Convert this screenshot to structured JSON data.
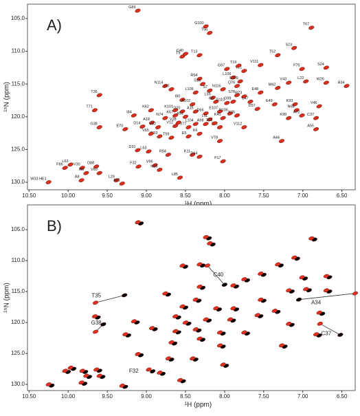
{
  "chart_data": [
    {
      "type": "scatter",
      "panel_label": "A)",
      "xlabel": "¹H (ppm)",
      "ylabel": "¹⁵N (ppm)",
      "xlim": [
        10.52,
        6.33
      ],
      "ylim": [
        102.8,
        131.15
      ],
      "xticks": [
        {
          "value": 10.5,
          "label": "10.50"
        },
        {
          "value": 10,
          "label": "10.00"
        },
        {
          "value": 9.5,
          "label": "9.50"
        },
        {
          "value": 9,
          "label": "9.00"
        },
        {
          "value": 8.5,
          "label": "8.50"
        },
        {
          "value": 8,
          "label": "8.00"
        },
        {
          "value": 7.5,
          "label": "7.50"
        },
        {
          "value": 7,
          "label": "7.00"
        },
        {
          "value": 6.5,
          "label": "6.50"
        }
      ],
      "yticks": [
        {
          "value": 105,
          "label": "105.0"
        },
        {
          "value": 110,
          "label": "110.0"
        },
        {
          "value": 115,
          "label": "115.0"
        },
        {
          "value": 120,
          "label": "120.0"
        },
        {
          "value": 125,
          "label": "125.0"
        },
        {
          "value": 130,
          "label": "130.0"
        }
      ],
      "series": [
        {
          "color": "#d7301f",
          "labels": [
            "G89",
            "G100",
            "T56",
            "T67",
            "S23",
            "T52",
            "T9",
            "C40",
            "T13",
            "F75",
            "V111",
            "V21",
            "T19",
            "G97",
            "S24",
            "W26",
            "A34",
            "L22",
            "V43",
            "M42",
            "L106",
            "S109",
            "Q76",
            "R54",
            "S16",
            "N114",
            "I10",
            "T35",
            "L105",
            "S7",
            "N116",
            "E48",
            "S78",
            "L56",
            "I50",
            "G99",
            "D110",
            "R73",
            "L47",
            "I80",
            "A102",
            "D57",
            "E49",
            "K93",
            "V46",
            "N68",
            "A72",
            "C37",
            "K99",
            "A55",
            "A44",
            "T71",
            "I84",
            "K62",
            "G38",
            "A18",
            "D14",
            "N74",
            "E70",
            "V92",
            "K101",
            "D20",
            "K67",
            "A51",
            "A15",
            "D66",
            "E107",
            "R106",
            "K41",
            "K26",
            "V112",
            "V12",
            "V28",
            "L104",
            "A98",
            "L11",
            "V77",
            "T82",
            "T59",
            "W33",
            "E5",
            "K6",
            "103",
            "V78",
            "V65",
            "D31",
            "R94",
            "L63",
            "K11",
            "D64",
            "F17",
            "L85",
            "V96",
            "N25",
            "F32",
            "L63",
            "F86",
            "V30",
            "D88",
            "I95",
            "V60",
            "A8",
            "L29",
            "A61",
            "W33 HE1"
          ],
          "x": [
            9.11,
            8.24,
            8.19,
            6.89,
            7.11,
            7.32,
            8.54,
            8.5,
            8.32,
            7.01,
            7.54,
            7.75,
            7.82,
            7.97,
            6.7,
            6.7,
            6.44,
            6.96,
            7.18,
            7.32,
            7.89,
            7.8,
            7.84,
            8.32,
            8.28,
            8.76,
            8.68,
            9.6,
            8.37,
            8.19,
            8.02,
            7.54,
            7.84,
            8.15,
            8.11,
            7.89,
            7.97,
            7.75,
            7.67,
            8.54,
            8.41,
            7.58,
            7.36,
            7.1,
            6.79,
            7.08,
            7.01,
            6.83,
            7.18,
            6.83,
            7.27,
            9.66,
            9.16,
            8.94,
            9.6,
            8.93,
            9.05,
            8.76,
            9.27,
            8.85,
            8.63,
            8.54,
            8.63,
            8.5,
            8.37,
            8.24,
            8.06,
            7.93,
            8.02,
            7.84,
            7.75,
            8.63,
            8.59,
            8.37,
            8.24,
            8.19,
            8.46,
            8.06,
            8.68,
            8.83,
            8.46,
            8.32,
            8.13,
            8.06,
            8.94,
            9.11,
            8.72,
            8.97,
            8.41,
            8.32,
            8.02,
            8.57,
            8.89,
            8.83,
            9.1,
            9.97,
            10.04,
            9.82,
            9.64,
            9.77,
            9.6,
            9.83,
            9.38,
            9.31,
            10.25
          ],
          "values": [
            103.8,
            106.2,
            107.2,
            106.4,
            109.5,
            110.6,
            110.8,
            110.4,
            110.6,
            112.7,
            112.1,
            113,
            112.2,
            112.7,
            112.5,
            114.8,
            115.3,
            114.6,
            114.8,
            115.6,
            114,
            114.6,
            115.3,
            114.2,
            115,
            115.3,
            115.8,
            116.7,
            116.3,
            116,
            115.8,
            116.3,
            116.7,
            117.1,
            117.7,
            117.7,
            117.9,
            116.9,
            117.7,
            117.4,
            118.1,
            118.8,
            118.1,
            118.1,
            118.4,
            119,
            119.8,
            120.2,
            120.2,
            121.9,
            123.7,
            119,
            119.8,
            119,
            121.6,
            120.9,
            121.5,
            120.2,
            121.9,
            121.6,
            119,
            119.2,
            119.8,
            120,
            119.2,
            119.5,
            119.2,
            119.5,
            120.2,
            119.8,
            121.6,
            121.4,
            120.9,
            121.1,
            121.1,
            120.4,
            121.6,
            121.6,
            123.2,
            123,
            123,
            122.6,
            121,
            123.7,
            122.6,
            125.1,
            125.8,
            125.3,
            125.8,
            126.1,
            126.8,
            129.3,
            127.4,
            128.1,
            127.6,
            127.3,
            127.8,
            127.8,
            127.6,
            128.6,
            128.6,
            129.7,
            129.7,
            130.2,
            130
          ]
        }
      ]
    },
    {
      "type": "scatter",
      "panel_label": "B)",
      "xlabel": "¹H (ppm)",
      "ylabel": "¹⁵N (ppm)",
      "xlim": [
        10.52,
        6.33
      ],
      "ylim": [
        101.0,
        131.0
      ],
      "xticks": [
        {
          "value": 10.5,
          "label": "10.50"
        },
        {
          "value": 10,
          "label": "10.00"
        },
        {
          "value": 9.5,
          "label": "9.50"
        },
        {
          "value": 9,
          "label": "9.00"
        },
        {
          "value": 8.5,
          "label": "8.50"
        },
        {
          "value": 8,
          "label": "8.00"
        },
        {
          "value": 7.5,
          "label": "7.50"
        },
        {
          "value": 7,
          "label": "7.00"
        },
        {
          "value": 6.5,
          "label": "6.50"
        }
      ],
      "yticks": [
        {
          "value": 105,
          "label": "105.0"
        },
        {
          "value": 110,
          "label": "110.0"
        },
        {
          "value": 115,
          "label": "115.0"
        },
        {
          "value": 120,
          "label": "120.0"
        },
        {
          "value": 125,
          "label": "125.0"
        },
        {
          "value": 130,
          "label": "130.0"
        }
      ],
      "annotations": [
        {
          "text": "T35",
          "x": 9.64,
          "y": 115.7
        },
        {
          "text": "G38",
          "x": 9.64,
          "y": 120.1
        },
        {
          "text": "C40",
          "x": 8.08,
          "y": 112.3
        },
        {
          "text": "A34",
          "x": 6.83,
          "y": 116.8
        },
        {
          "text": "C37",
          "x": 6.7,
          "y": 121.8
        },
        {
          "text": "F32",
          "x": 9.16,
          "y": 127.9
        }
      ],
      "series": [
        {
          "color": "#000000",
          "x": [
            9.28,
            9.55,
            8.0,
            7.05,
            6.52,
            8.92,
            9.07,
            8.2,
            8.15,
            6.85,
            7.07,
            7.28,
            8.5,
            8.28,
            6.97,
            7.5,
            7.71,
            6.66,
            6.66,
            6.92,
            7.14,
            7.85,
            8.28,
            8.72,
            8.33,
            7.5,
            8.07,
            7.85,
            8.5,
            7.54,
            7.32,
            6.75,
            7.14,
            6.79,
            7.23,
            9.62,
            9.12,
            8.89,
            9.23,
            8.59,
            8.46,
            8.2,
            7.89,
            7.71,
            8.59,
            8.33,
            8.02,
            8.64,
            8.28,
            8.02,
            9.07,
            8.68,
            8.37,
            7.98,
            8.53,
            8.79,
            9.93,
            10.0,
            9.78,
            9.6,
            9.73,
            9.56,
            9.79,
            9.27,
            10.21
          ],
          "values": [
            115.6,
            120.3,
            113.9,
            116.3,
            122.0,
            127.9,
            104.0,
            106.4,
            107.4,
            106.6,
            109.7,
            110.8,
            111.0,
            110.8,
            112.9,
            112.3,
            113.2,
            112.7,
            115.0,
            114.8,
            115.0,
            114.2,
            114.4,
            115.5,
            116.5,
            116.5,
            117.9,
            117.9,
            117.6,
            119.0,
            118.3,
            118.6,
            120.4,
            122.1,
            123.9,
            119.2,
            120.0,
            121.1,
            122.1,
            119.2,
            120.2,
            119.7,
            119.7,
            121.8,
            121.6,
            121.3,
            121.8,
            123.4,
            122.8,
            123.9,
            125.3,
            126.0,
            126.0,
            127.0,
            129.5,
            128.3,
            127.5,
            128.0,
            128.0,
            127.8,
            128.8,
            128.8,
            129.9,
            130.4,
            130.2
          ]
        },
        {
          "color": "#e03020",
          "x": [
            9.65,
            9.65,
            8.22,
            6.33,
            6.78,
            8.97,
            9.11,
            8.24,
            8.19,
            6.89,
            7.11,
            7.32,
            8.54,
            8.32,
            7.01,
            7.54,
            7.75,
            6.7,
            6.7,
            6.96,
            7.18,
            7.89,
            8.32,
            8.76,
            8.37,
            7.54,
            8.11,
            7.89,
            8.54,
            7.58,
            7.36,
            6.79,
            7.18,
            6.83,
            7.27,
            9.66,
            9.16,
            8.93,
            9.27,
            8.63,
            8.5,
            8.24,
            7.93,
            7.75,
            8.63,
            8.37,
            8.06,
            8.68,
            8.32,
            8.06,
            9.11,
            8.72,
            8.41,
            8.02,
            8.57,
            8.83,
            9.97,
            10.04,
            9.82,
            9.64,
            9.77,
            9.6,
            9.83,
            9.31,
            10.25
          ],
          "values": [
            116.8,
            121.5,
            110.8,
            115.3,
            120.2,
            127.6,
            103.8,
            106.2,
            107.2,
            106.4,
            109.5,
            110.6,
            110.8,
            110.6,
            112.7,
            112.1,
            113.0,
            112.5,
            114.8,
            114.6,
            114.8,
            114.0,
            114.2,
            115.3,
            116.3,
            116.3,
            117.7,
            117.7,
            117.4,
            118.8,
            118.1,
            118.4,
            120.2,
            121.9,
            123.7,
            119.0,
            119.8,
            120.9,
            121.9,
            119.0,
            120.0,
            119.5,
            119.5,
            121.6,
            121.4,
            121.1,
            121.6,
            123.2,
            122.6,
            123.7,
            125.1,
            125.8,
            125.8,
            126.8,
            129.3,
            128.1,
            127.3,
            127.8,
            127.8,
            127.6,
            128.6,
            128.6,
            129.7,
            130.2,
            130.0
          ]
        }
      ]
    }
  ]
}
